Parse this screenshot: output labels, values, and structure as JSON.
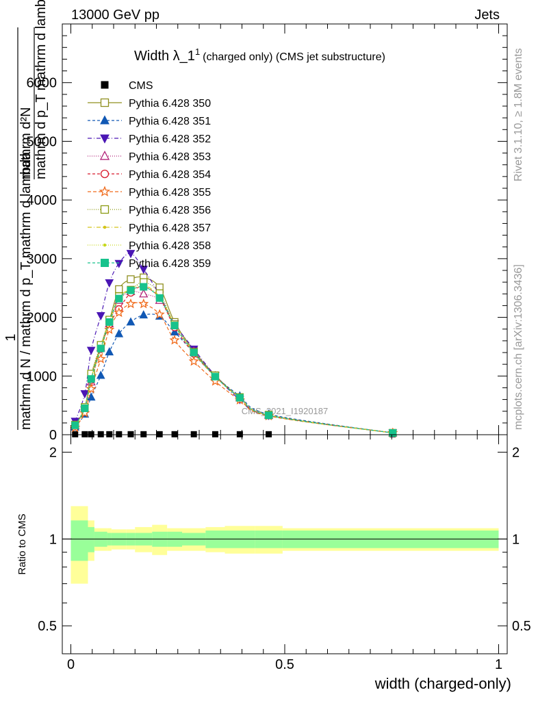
{
  "header": {
    "left": "13000 GeV pp",
    "right": "Jets"
  },
  "side_labels": {
    "rivet": "Rivet 3.1.10, ≥ 1.8M events",
    "mcplots": "mcplots.cern.ch [arXiv:1306.3436]"
  },
  "watermark": "CMS_2021_I1920187",
  "chart_data": [
    {
      "type": "line",
      "title": "Width λ_1",
      "title_sup": "1",
      "subtitle": "(charged only) (CMS jet substructure)",
      "ylabel_lines": [
        "1",
        "mathrm d N / mathrm d p_T mathrm d lambda",
        "mathrm d²N",
        "mathrm d p_T mathrm d lambda"
      ],
      "xlim": [
        -0.02,
        1.02
      ],
      "ylim": [
        0,
        7000
      ],
      "yticks": [
        0,
        1000,
        2000,
        3000,
        4000,
        5000,
        6000
      ],
      "ytick_labels": [
        "0",
        "1000",
        "2000",
        "3000",
        "4000",
        "5000",
        "6000"
      ],
      "legend_position": "top-left",
      "x": [
        0.01,
        0.0325,
        0.0475,
        0.07,
        0.09,
        0.1125,
        0.14,
        0.17,
        0.2075,
        0.2425,
        0.2875,
        0.3375,
        0.395,
        0.4625,
        0.7525
      ],
      "series": [
        {
          "name": "CMS",
          "color": "#000000",
          "marker": "filled-square",
          "dash": "none",
          "values": [
            8,
            8,
            8,
            8,
            8,
            8,
            8,
            8,
            8,
            8,
            8,
            8,
            8,
            8,
            8
          ]
        },
        {
          "name": "Pythia 6.428 350",
          "color": "#8f8f1f",
          "marker": "open-square",
          "dash": "solid",
          "values": [
            160,
            460,
            1000,
            1510,
            1950,
            2480,
            2650,
            2680,
            2510,
            1920,
            1430,
            1010,
            630,
            330,
            30
          ]
        },
        {
          "name": "Pythia 6.428 351",
          "color": "#1158b4",
          "marker": "filled-triangle",
          "dash": "4,3",
          "values": [
            130,
            350,
            640,
            1010,
            1410,
            1720,
            1920,
            2040,
            2020,
            1750,
            1400,
            1000,
            660,
            350,
            30
          ]
        },
        {
          "name": "Pythia 6.428 352",
          "color": "#4a16b4",
          "marker": "filled-triangle-down",
          "dash": "6,3,1,3",
          "values": [
            230,
            700,
            1440,
            2030,
            2590,
            2920,
            3090,
            2820,
            2380,
            1890,
            1460,
            1010,
            600,
            330,
            30
          ]
        },
        {
          "name": "Pythia 6.428 353",
          "color": "#b2257a",
          "marker": "open-triangle",
          "dash": "1,2",
          "values": [
            160,
            440,
            900,
            1480,
            1890,
            2290,
            2440,
            2400,
            2290,
            1860,
            1420,
            1000,
            630,
            330,
            30
          ]
        },
        {
          "name": "Pythia 6.428 354",
          "color": "#d8182b",
          "marker": "open-circle",
          "dash": "4,3",
          "values": [
            150,
            450,
            930,
            1460,
            1880,
            2140,
            2420,
            2520,
            2330,
            1830,
            1380,
            990,
            630,
            330,
            30
          ]
        },
        {
          "name": "Pythia 6.428 355",
          "color": "#f06a1a",
          "marker": "open-star",
          "dash": "5,3",
          "values": [
            120,
            370,
            780,
            1290,
            1790,
            2080,
            2230,
            2230,
            2050,
            1610,
            1250,
            910,
            590,
            320,
            30
          ]
        },
        {
          "name": "Pythia 6.428 356",
          "color": "#8a9a12",
          "marker": "open-square",
          "dash": "1,2",
          "values": [
            170,
            470,
            1040,
            1530,
            1960,
            2360,
            2470,
            2600,
            2410,
            1880,
            1410,
            1010,
            640,
            340,
            30
          ]
        },
        {
          "name": "Pythia 6.428 357",
          "color": "#d4c41a",
          "marker": "small-dot",
          "dash": "6,3,1,3",
          "values": [
            160,
            450,
            960,
            1490,
            1930,
            2330,
            2480,
            2550,
            2350,
            1880,
            1400,
            990,
            630,
            330,
            30
          ]
        },
        {
          "name": "Pythia 6.428 358",
          "color": "#c6d81a",
          "marker": "small-dot",
          "dash": "1,2",
          "values": [
            150,
            430,
            930,
            1450,
            1900,
            2310,
            2460,
            2520,
            2340,
            1870,
            1390,
            990,
            630,
            330,
            30
          ]
        },
        {
          "name": "Pythia 6.428 359",
          "color": "#17c28c",
          "marker": "filled-square",
          "dash": "4,3",
          "values": [
            160,
            450,
            950,
            1470,
            1920,
            2320,
            2460,
            2520,
            2330,
            1860,
            1400,
            990,
            630,
            330,
            30
          ]
        }
      ]
    },
    {
      "type": "area",
      "ylabel": "Ratio to CMS",
      "xlabel": "width (charged-only)",
      "xlim": [
        -0.02,
        1.02
      ],
      "ylim": [
        0.4,
        2.3
      ],
      "ytick_labels": [
        "0.5",
        "1",
        "2"
      ],
      "xtick_labels": [
        "0",
        "0.5",
        "1"
      ],
      "band_colors": {
        "outer": "#ffff99",
        "inner": "#99ff99"
      },
      "edges": [
        0,
        0.04,
        0.055,
        0.085,
        0.095,
        0.13,
        0.15,
        0.19,
        0.225,
        0.26,
        0.315,
        0.36,
        0.43,
        0.495,
        1.0
      ],
      "band_inner": [
        0.16,
        0.1,
        0.06,
        0.05,
        0.05,
        0.05,
        0.05,
        0.06,
        0.06,
        0.05,
        0.07,
        0.07,
        0.07,
        0.07,
        0.09
      ],
      "band_outer": [
        0.3,
        0.16,
        0.09,
        0.09,
        0.08,
        0.08,
        0.1,
        0.12,
        0.09,
        0.09,
        0.1,
        0.11,
        0.11,
        0.09,
        0.18
      ]
    }
  ]
}
